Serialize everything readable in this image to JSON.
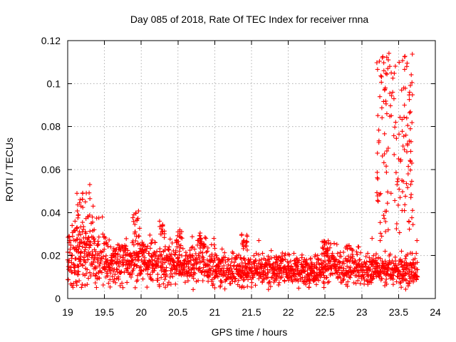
{
  "chart_data": {
    "type": "scatter",
    "title": "Day 085 of 2018, Rate Of TEC Index for receiver rnna",
    "xlabel": "GPS time / hours",
    "ylabel": "ROTI / TECUs",
    "xlim": [
      19,
      24
    ],
    "ylim": [
      0,
      0.12
    ],
    "xticks": [
      19,
      19.5,
      20,
      20.5,
      21,
      21.5,
      22,
      22.5,
      23,
      23.5,
      24
    ],
    "xtick_labels": [
      "19",
      "19.5",
      "20",
      "20.5",
      "21",
      "21.5",
      "22",
      "22.5",
      "23",
      "23.5",
      "24"
    ],
    "yticks": [
      0,
      0.02,
      0.04,
      0.06,
      0.08,
      0.1,
      0.12
    ],
    "ytick_labels": [
      "0",
      "0.02",
      "0.04",
      "0.06",
      "0.08",
      "0.1",
      "0.12"
    ],
    "grid": true,
    "marker": "+",
    "color": "#ff0000",
    "series": [
      {
        "name": "ROTI",
        "x": [
          19.0,
          19.02,
          19.03,
          19.05,
          19.06,
          19.08,
          19.1,
          19.12,
          19.14,
          19.15,
          19.16,
          19.17,
          19.18,
          19.2,
          19.22,
          19.24,
          19.26,
          19.28,
          19.3,
          19.32,
          19.34,
          19.36,
          19.38,
          19.4,
          19.42,
          19.45,
          19.48,
          19.5,
          19.52,
          19.55,
          19.58,
          19.6,
          19.62,
          19.65,
          19.68,
          19.7,
          19.72,
          19.75,
          19.78,
          19.8,
          19.82,
          19.85,
          19.88,
          19.9,
          19.92,
          19.95,
          19.98,
          20.0,
          20.02,
          20.05,
          20.08,
          20.1,
          20.12,
          20.15,
          20.2,
          20.25,
          20.28,
          20.3,
          20.32,
          20.35,
          20.38,
          20.4,
          20.45,
          20.48,
          20.5,
          20.52,
          20.55,
          20.58,
          20.6,
          20.62,
          20.65,
          20.7,
          20.75,
          20.8,
          20.85,
          20.88,
          20.9,
          20.92,
          20.95,
          21.0,
          21.02,
          21.05,
          21.08,
          21.1,
          21.15,
          21.2,
          21.25,
          21.3,
          21.35,
          21.38,
          21.4,
          21.45,
          21.5,
          21.55,
          21.6,
          21.65,
          21.7,
          21.75,
          21.8,
          21.85,
          21.9,
          21.95,
          22.0,
          22.05,
          22.1,
          22.15,
          22.2,
          22.25,
          22.3,
          22.35,
          22.4,
          22.45,
          22.48,
          22.5,
          22.52,
          22.55,
          22.58,
          22.6,
          22.65,
          22.7,
          22.75,
          22.8,
          22.85,
          22.9,
          22.95,
          23.0,
          23.02,
          23.05,
          23.08,
          23.1,
          23.12,
          23.14,
          23.16,
          23.18,
          23.2,
          23.22,
          23.24,
          23.25,
          23.27,
          23.28,
          23.3,
          23.31,
          23.32,
          23.34,
          23.36,
          23.38,
          23.4,
          23.42,
          23.44,
          23.46,
          23.48,
          23.5,
          23.52,
          23.54,
          23.55,
          23.57,
          23.58,
          23.6,
          23.61,
          23.62,
          23.63,
          23.64,
          23.65,
          23.66,
          23.67,
          23.68,
          23.69,
          23.7,
          23.72,
          23.74,
          23.75
        ],
        "y": [
          0.018,
          0.026,
          0.013,
          0.02,
          0.034,
          0.016,
          0.036,
          0.022,
          0.011,
          0.015,
          0.026,
          0.046,
          0.043,
          0.031,
          0.018,
          0.045,
          0.025,
          0.038,
          0.053,
          0.035,
          0.02,
          0.032,
          0.014,
          0.019,
          0.012,
          0.017,
          0.022,
          0.016,
          0.01,
          0.015,
          0.013,
          0.018,
          0.008,
          0.021,
          0.025,
          0.015,
          0.012,
          0.019,
          0.023,
          0.017,
          0.014,
          0.02,
          0.026,
          0.039,
          0.031,
          0.018,
          0.022,
          0.013,
          0.017,
          0.024,
          0.016,
          0.021,
          0.01,
          0.018,
          0.015,
          0.036,
          0.03,
          0.022,
          0.013,
          0.019,
          0.024,
          0.013,
          0.017,
          0.026,
          0.031,
          0.022,
          0.015,
          0.011,
          0.018,
          0.02,
          0.013,
          0.024,
          0.016,
          0.013,
          0.018,
          0.028,
          0.022,
          0.01,
          0.014,
          0.005,
          0.02,
          0.013,
          0.017,
          0.023,
          0.011,
          0.013,
          0.021,
          0.015,
          0.019,
          0.025,
          0.012,
          0.016,
          0.009,
          0.013,
          0.027,
          0.021,
          0.01,
          0.016,
          0.012,
          0.018,
          0.014,
          0.02,
          0.01,
          0.013,
          0.016,
          0.011,
          0.015,
          0.018,
          0.012,
          0.014,
          0.02,
          0.016,
          0.021,
          0.026,
          0.022,
          0.018,
          0.014,
          0.02,
          0.013,
          0.017,
          0.011,
          0.015,
          0.019,
          0.014,
          0.016,
          0.013,
          0.01,
          0.015,
          0.021,
          0.013,
          0.017,
          0.028,
          0.02,
          0.012,
          0.015,
          0.012,
          0.011,
          0.027,
          0.029,
          0.112,
          0.106,
          0.097,
          0.098,
          0.086,
          0.111,
          0.108,
          0.105,
          0.096,
          0.067,
          0.082,
          0.053,
          0.065,
          0.047,
          0.022,
          0.015,
          0.098,
          0.09,
          0.076,
          0.084,
          0.072,
          0.058,
          0.036,
          0.096,
          0.079,
          0.073,
          0.063,
          0.041,
          0.018,
          0.014,
          0.021,
          0.027
        ],
        "y_upper_band": "dense scatter of '+' markers concentrated between ~0.005 and ~0.025 across 19–23 h, with spikes to ~0.053 near 19.3 h and to ~0.115 between 23.2–23.7 h"
      }
    ]
  }
}
